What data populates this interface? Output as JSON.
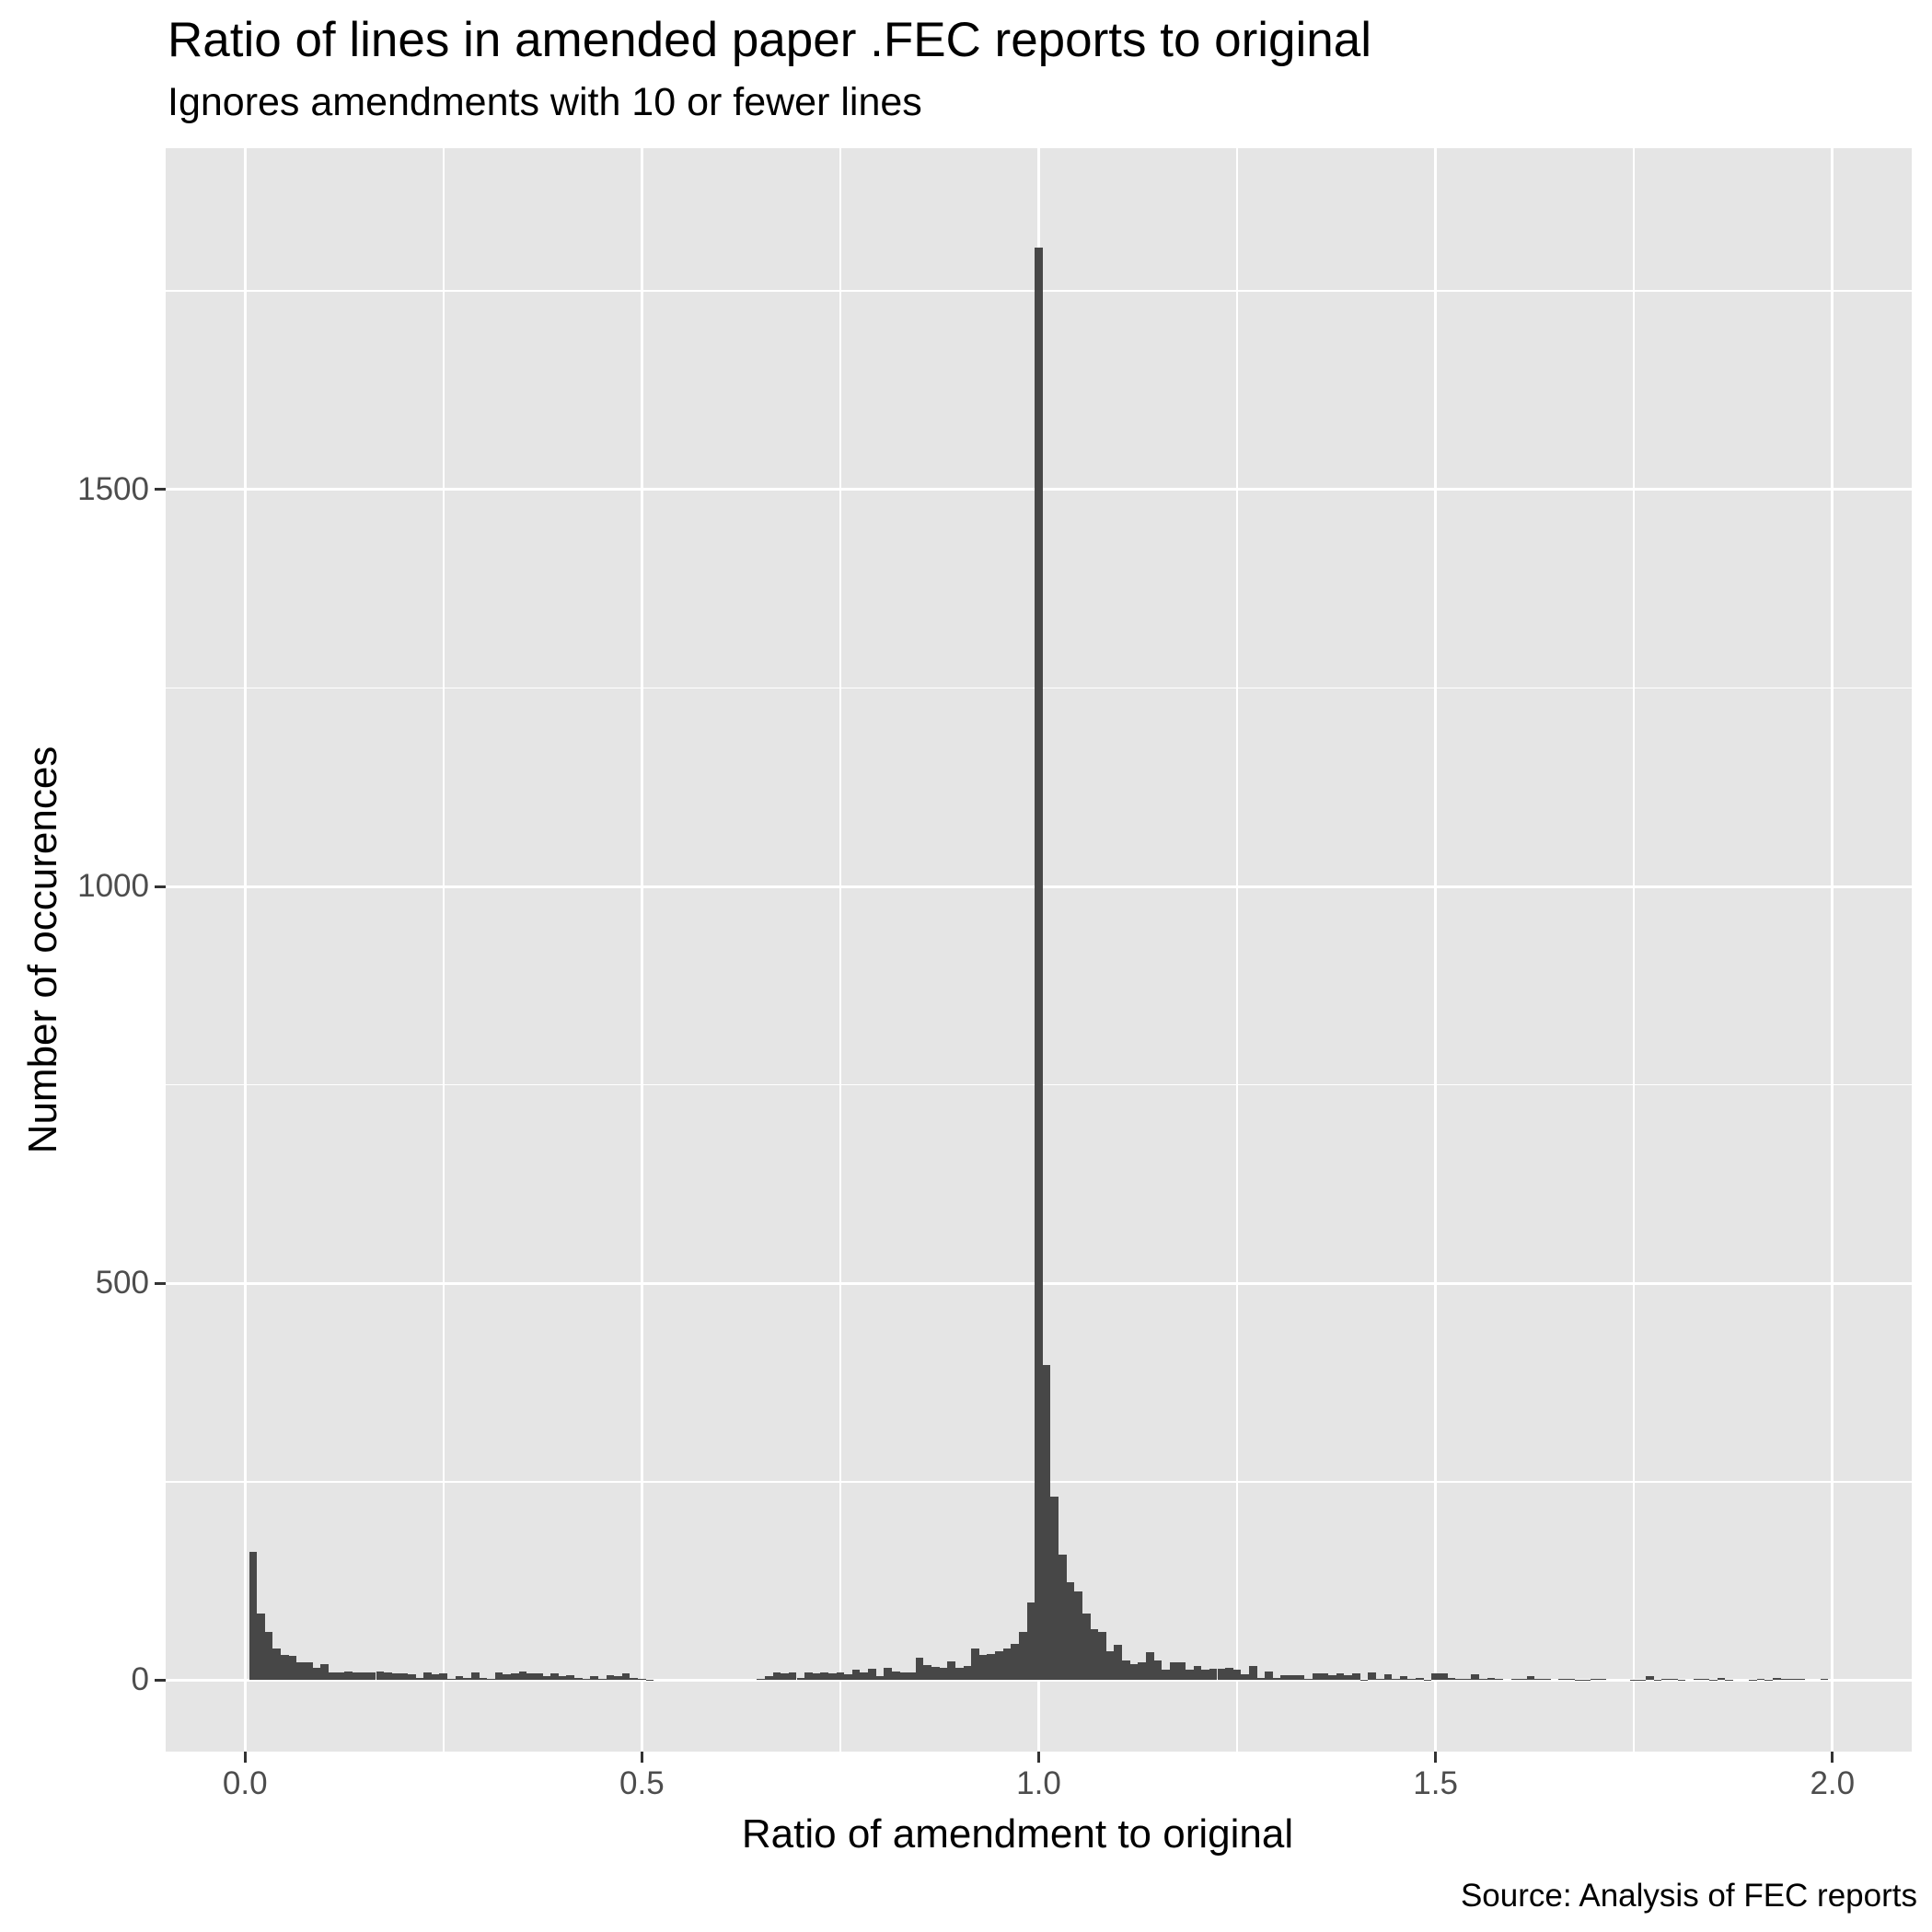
{
  "title": "Ratio of lines in amended paper .FEC reports to original",
  "subtitle": "Ignores amendments with 10 or fewer lines",
  "caption": "Source: Analysis of FEC reports",
  "colors": {
    "panel_bg": "#e5e5e5",
    "grid": "#ffffff",
    "bar_fill": "#474747",
    "tick_text": "#4d4d4d"
  },
  "chart_data": {
    "type": "bar",
    "subtype": "histogram",
    "title": "Ratio of lines in amended paper .FEC reports to original",
    "subtitle": "Ignores amendments with 10 or fewer lines",
    "caption": "Source: Analysis of FEC reports",
    "xlabel": "Ratio of amendment to original",
    "ylabel": "Number of occurences",
    "xlim": [
      -0.1,
      2.1
    ],
    "ylim": [
      -90,
      1930
    ],
    "x_ticks": [
      0.0,
      0.5,
      1.0,
      1.5,
      2.0
    ],
    "x_tick_labels": [
      "0.0",
      "0.5",
      "1.0",
      "1.5",
      "2.0"
    ],
    "y_ticks": [
      0,
      500,
      1000,
      1500
    ],
    "y_tick_labels": [
      "0",
      "500",
      "1000",
      "1500"
    ],
    "grid": true,
    "legend": null,
    "bin_width": 0.01,
    "bin_start": 0.0,
    "values": [
      0,
      162,
      84,
      61,
      40,
      32,
      31,
      22,
      23,
      15,
      20,
      10,
      10,
      11,
      10,
      10,
      10,
      11,
      10,
      8,
      9,
      7,
      3,
      10,
      7,
      8,
      2,
      5,
      3,
      10,
      3,
      2,
      10,
      7,
      9,
      11,
      8,
      8,
      5,
      8,
      5,
      6,
      3,
      2,
      5,
      2,
      6,
      5,
      8,
      3,
      2,
      1,
      0,
      0,
      0,
      0,
      0,
      0,
      0,
      0,
      0,
      0,
      0,
      0,
      0,
      2,
      5,
      10,
      8,
      10,
      3,
      10,
      8,
      10,
      9,
      10,
      7,
      13,
      10,
      14,
      5,
      15,
      11,
      10,
      10,
      28,
      19,
      17,
      16,
      24,
      16,
      18,
      40,
      32,
      33,
      36,
      40,
      46,
      61,
      98,
      1805,
      397,
      231,
      158,
      123,
      112,
      84,
      64,
      61,
      36,
      44,
      25,
      20,
      23,
      35,
      25,
      13,
      22,
      23,
      13,
      18,
      13,
      14,
      14,
      15,
      13,
      7,
      18,
      3,
      11,
      3,
      6,
      6,
      6,
      2,
      8,
      8,
      6,
      8,
      6,
      8,
      1,
      10,
      2,
      7,
      2,
      5,
      2,
      3,
      1,
      8,
      8,
      3,
      2,
      2,
      7,
      2,
      3,
      2,
      0,
      2,
      2,
      5,
      2,
      2,
      0,
      2,
      2,
      1,
      1,
      2,
      2,
      0,
      0,
      0,
      1,
      1,
      5,
      1,
      2,
      2,
      1,
      0,
      2,
      2,
      1,
      3,
      1,
      0,
      0,
      1,
      2,
      1,
      3,
      2,
      2,
      2,
      0,
      0,
      2,
      0
    ]
  }
}
